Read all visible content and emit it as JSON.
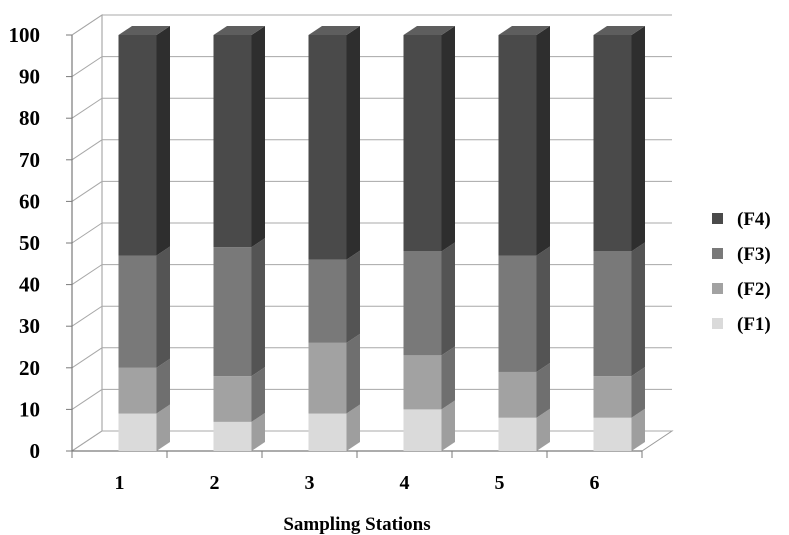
{
  "chart_data": {
    "type": "bar",
    "stacked": true,
    "three_d": true,
    "categories": [
      "1",
      "2",
      "3",
      "4",
      "5",
      "6"
    ],
    "series": [
      {
        "name": "(F1)",
        "values": [
          9,
          7,
          9,
          10,
          8,
          8
        ],
        "color": "#dadada",
        "side": "#9e9e9e",
        "top": "#ececec"
      },
      {
        "name": "(F2)",
        "values": [
          11,
          11,
          17,
          13,
          11,
          10
        ],
        "color": "#a2a2a2",
        "side": "#6f6f6f",
        "top": "#bdbdbd"
      },
      {
        "name": "(F3)",
        "values": [
          27,
          31,
          20,
          25,
          28,
          30
        ],
        "color": "#797979",
        "side": "#545454",
        "top": "#939393"
      },
      {
        "name": "(F4)",
        "values": [
          53,
          51,
          54,
          52,
          53,
          52
        ],
        "color": "#4a4a4a",
        "side": "#2e2e2e",
        "top": "#5e5e5e"
      }
    ],
    "ylim": [
      0,
      100
    ],
    "yticks": [
      0,
      10,
      20,
      30,
      40,
      50,
      60,
      70,
      80,
      90,
      100
    ],
    "xlabel": "Sampling Stations",
    "ylabel": "",
    "grid": true,
    "legend_position": "right"
  }
}
